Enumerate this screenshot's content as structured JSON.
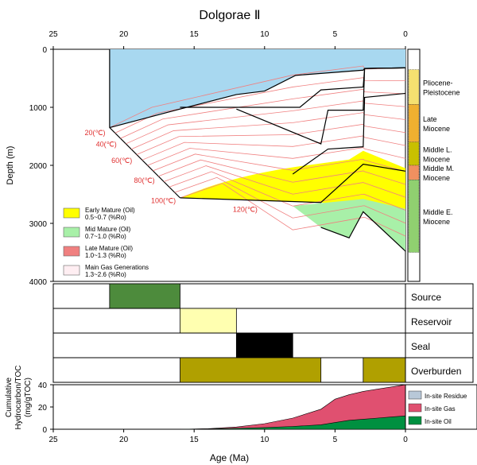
{
  "chart_data": [
    {
      "type": "area",
      "title": "Dolgorae Ⅱ",
      "panel": "burial history",
      "xlabel": "",
      "ylabel": "Depth (m)",
      "xlim": [
        25,
        0
      ],
      "ylim": [
        4000,
        0
      ],
      "x_ticks": [
        25,
        20,
        15,
        10,
        5,
        0
      ],
      "y_ticks": [
        0,
        1000,
        2000,
        3000,
        4000
      ],
      "water_color": "#a8d8f0",
      "horizons": [
        {
          "name": "h1",
          "x": [
            21,
            16,
            12,
            10,
            7.8,
            3,
            2.9,
            0
          ],
          "y": [
            1350,
            1030,
            780,
            720,
            450,
            360,
            330,
            320
          ]
        },
        {
          "name": "h2",
          "x": [
            16,
            7.5,
            6,
            3,
            2.9,
            0
          ],
          "y": [
            1000,
            1000,
            700,
            650,
            330,
            320
          ]
        },
        {
          "name": "h3",
          "x": [
            12,
            6,
            5.5,
            3,
            2.9,
            0
          ],
          "y": [
            1030,
            1630,
            1050,
            1050,
            330,
            320
          ]
        },
        {
          "name": "h4",
          "x": [
            8,
            5.5,
            3,
            2.9,
            0
          ],
          "y": [
            2150,
            1720,
            1680,
            830,
            760
          ]
        },
        {
          "name": "h5",
          "x": [
            16,
            6,
            3,
            0
          ],
          "y": [
            2560,
            2640,
            1980,
            2100
          ]
        },
        {
          "name": "h6",
          "x": [
            6,
            4,
            3,
            0
          ],
          "y": [
            3070,
            3250,
            2800,
            3480
          ]
        }
      ],
      "isotherms": [
        {
          "label": "20(℃)",
          "value": 20
        },
        {
          "label": "40(℃)",
          "value": 40
        },
        {
          "label": "60(℃)",
          "value": 60
        },
        {
          "label": "80(℃)",
          "value": 80
        },
        {
          "label": "100(℃)",
          "value": 100
        },
        {
          "label": "120(℃)",
          "value": 120
        }
      ],
      "maturity_windows": [
        {
          "name": "Early Mature (Oil)",
          "range": "0.5~0.7 (%Ro)",
          "color": "#ffff00"
        },
        {
          "name": "Mid Mature (Oil)",
          "range": "0.7~1.0 (%Ro)",
          "color": "#a8f0a8"
        },
        {
          "name": "Late Mature (Oil)",
          "range": "1.0~1.3 (%Ro)",
          "color": "#f08080"
        },
        {
          "name": "Main Gas Generations",
          "range": "1.3~2.6 (%Ro)",
          "color": "#ffeef2"
        }
      ],
      "stratigraphy": [
        {
          "label": "Pliocene-\nPleistocene",
          "top": 350,
          "base": 950,
          "color": "#f5e070"
        },
        {
          "label": "Late\nMiocene",
          "top": 950,
          "base": 1600,
          "color": "#f0b030"
        },
        {
          "label": "Middle L.\nMiocene",
          "top": 1600,
          "base": 2000,
          "color": "#c8c000"
        },
        {
          "label": "Middle M.\nMiocene",
          "top": 2000,
          "base": 2250,
          "color": "#f09060"
        },
        {
          "label": "Middle E.\nMiocene",
          "top": 2250,
          "base": 3500,
          "color": "#90d070"
        }
      ],
      "legend_position": "bottom-left"
    },
    {
      "type": "table",
      "panel": "petroleum system events",
      "xlim": [
        25,
        0
      ],
      "rows": [
        {
          "label": "Source",
          "from": 21,
          "to": 16,
          "color": "#4d8b3c"
        },
        {
          "label": "Reservoir",
          "from": 16,
          "to": 12,
          "color": "#ffffb0"
        },
        {
          "label": "Seal",
          "from": 12,
          "to": 8,
          "color": "#000000"
        },
        {
          "label": "Overburden",
          "from": 16,
          "to": 6,
          "color": "#b0a000",
          "from2": 3,
          "to2": 0
        }
      ]
    },
    {
      "type": "area",
      "panel": "cumulative hydrocarbon",
      "xlabel": "Age (Ma)",
      "ylabel": "Cumulative\nHydrocarbon/TOC\n(mg/gTOC)",
      "xlim": [
        25,
        0
      ],
      "ylim": [
        0,
        40
      ],
      "x_ticks": [
        25,
        20,
        15,
        10,
        5,
        0
      ],
      "y_ticks": [
        0,
        20,
        40
      ],
      "x": [
        16,
        14,
        12,
        10,
        8,
        6,
        5,
        4,
        3,
        2,
        1,
        0
      ],
      "series": [
        {
          "name": "In-site Residue",
          "color": "#b8c8d8",
          "values": [
            0,
            0,
            0,
            0,
            0,
            0,
            0,
            0,
            0,
            0,
            0,
            0
          ]
        },
        {
          "name": "In-site Gas",
          "color": "#e05070",
          "values": [
            0,
            0.5,
            2,
            5,
            10,
            18,
            27,
            31,
            34,
            36,
            38,
            40
          ]
        },
        {
          "name": "In-site Oil",
          "color": "#009040",
          "values": [
            0,
            0.3,
            0.8,
            1.5,
            2.5,
            4,
            6,
            8,
            9,
            10,
            11,
            12
          ]
        }
      ],
      "legend_position": "right"
    }
  ]
}
